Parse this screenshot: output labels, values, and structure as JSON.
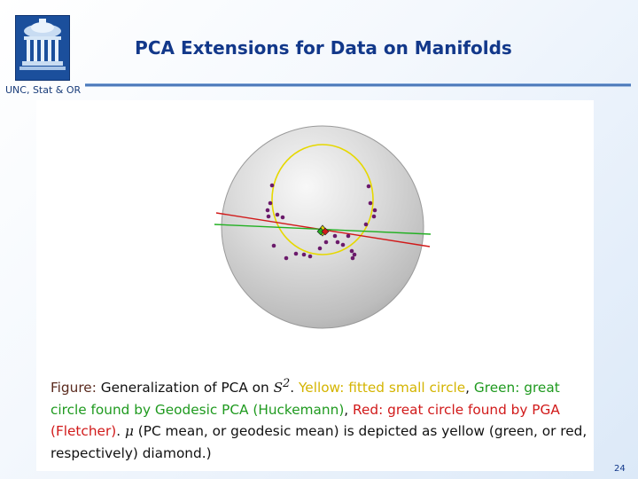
{
  "header": {
    "title": "PCA Extensions for Data on Manifolds",
    "subtitle": "UNC, Stat & OR"
  },
  "colors": {
    "brand_blue": "#12388a",
    "small_circle": "#e6d800",
    "geodesic_pca": "#22b022",
    "pga": "#d11a1a",
    "data_points": "#6b1a6b"
  },
  "icons": {
    "logo": "old-well-logo-icon"
  },
  "figure": {
    "caption": {
      "label": "Figure:",
      "text1": "Generalization of PCA on",
      "s_symbol": "S",
      "s_exponent": "2",
      "period": ".",
      "yellow": "Yellow: fitted small circle",
      "comma1": ",",
      "green": "Green: great circle found by Geodesic PCA (Huckemann)",
      "comma2": ",",
      "red": "Red: great circle found by PGA (Fletcher)",
      "period2": ".",
      "mu": "μ",
      "text2": "(PC mean, or geodesic mean) is depicted as yellow (green, or red, respectively) diamond.)"
    }
  },
  "footer": {
    "page_number": "24"
  }
}
